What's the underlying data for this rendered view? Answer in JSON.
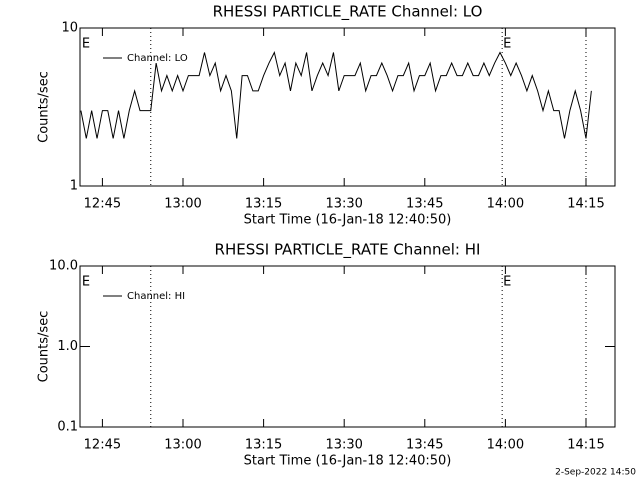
{
  "chart_data": [
    {
      "type": "line",
      "title": "RHESSI PARTICLE_RATE Channel: LO",
      "xlabel": "Start Time (16-Jan-18 12:40:50)",
      "ylabel": "Counts/sec",
      "log_y": true,
      "xlim": [
        760.83,
        860.4
      ],
      "xticks": [
        {
          "value": 765,
          "label": "12:45"
        },
        {
          "value": 780,
          "label": "13:00"
        },
        {
          "value": 795,
          "label": "13:15"
        },
        {
          "value": 810,
          "label": "13:30"
        },
        {
          "value": 825,
          "label": "13:45"
        },
        {
          "value": 840,
          "label": "14:00"
        },
        {
          "value": 855,
          "label": "14:15"
        }
      ],
      "ylim": [
        1,
        10
      ],
      "yticks": [
        1,
        10
      ],
      "vlines": [
        774,
        839.4,
        855
      ],
      "annotations": [
        {
          "text": "E",
          "x": 761
        },
        {
          "text": "E",
          "x": 839.4
        }
      ],
      "legend": "upper left",
      "x": [
        761,
        762,
        763,
        764,
        765,
        766,
        767,
        768,
        769,
        770,
        771,
        772,
        773,
        774,
        775,
        776,
        777,
        778,
        779,
        780,
        781,
        782,
        783,
        784,
        785,
        786,
        787,
        788,
        789,
        790,
        791,
        792,
        793,
        794,
        795,
        796,
        797,
        798,
        799,
        800,
        801,
        802,
        803,
        804,
        805,
        806,
        807,
        808,
        809,
        810,
        811,
        812,
        813,
        814,
        815,
        816,
        817,
        818,
        819,
        820,
        821,
        822,
        823,
        824,
        825,
        826,
        827,
        828,
        829,
        830,
        831,
        832,
        833,
        834,
        835,
        836,
        837,
        838,
        839,
        840,
        841,
        842,
        843,
        844,
        845,
        846,
        847,
        848,
        849,
        850,
        851,
        852,
        853,
        854,
        855,
        856
      ],
      "series": [
        {
          "name": "Channel: LO",
          "color": "#000000",
          "values": [
            3,
            2,
            3,
            2,
            3,
            3,
            2,
            3,
            2,
            3,
            4,
            3,
            3,
            3,
            6,
            4,
            5,
            4,
            5,
            4,
            5,
            5,
            5,
            7,
            5,
            6,
            4,
            5,
            4,
            2,
            5,
            5,
            4,
            4,
            5,
            6,
            7,
            5,
            6,
            4,
            6,
            5,
            7,
            4,
            5,
            6,
            5,
            7,
            4,
            5,
            5,
            5,
            6,
            4,
            5,
            5,
            6,
            5,
            4,
            5,
            5,
            6,
            4,
            5,
            5,
            6,
            4,
            5,
            5,
            6,
            5,
            5,
            6,
            5,
            5,
            6,
            5,
            6,
            7,
            6,
            5,
            6,
            5,
            4,
            5,
            4,
            3,
            4,
            3,
            3,
            2,
            3,
            4,
            3,
            2,
            4
          ]
        }
      ]
    },
    {
      "type": "line",
      "title": "RHESSI PARTICLE_RATE Channel: HI",
      "xlabel": "Start Time (16-Jan-18 12:40:50)",
      "ylabel": "Counts/sec",
      "log_y": true,
      "xlim": [
        760.83,
        860.4
      ],
      "xticks": [
        {
          "value": 765,
          "label": "12:45"
        },
        {
          "value": 780,
          "label": "13:00"
        },
        {
          "value": 795,
          "label": "13:15"
        },
        {
          "value": 810,
          "label": "13:30"
        },
        {
          "value": 825,
          "label": "13:45"
        },
        {
          "value": 840,
          "label": "14:00"
        },
        {
          "value": 855,
          "label": "14:15"
        }
      ],
      "ylim": [
        0.1,
        10
      ],
      "yticks": [
        0.1,
        {
          "value": 1,
          "label": "1.0"
        },
        {
          "value": 10,
          "label": "10.0"
        }
      ],
      "vlines": [
        774,
        839.4,
        855
      ],
      "annotations": [
        {
          "text": "E",
          "x": 761
        },
        {
          "text": "E",
          "x": 839.4
        }
      ],
      "legend": "upper left",
      "x": [],
      "series": [
        {
          "name": "Channel: HI",
          "color": "#000000",
          "values": []
        }
      ]
    }
  ],
  "footer": "2-Sep-2022 14:50"
}
